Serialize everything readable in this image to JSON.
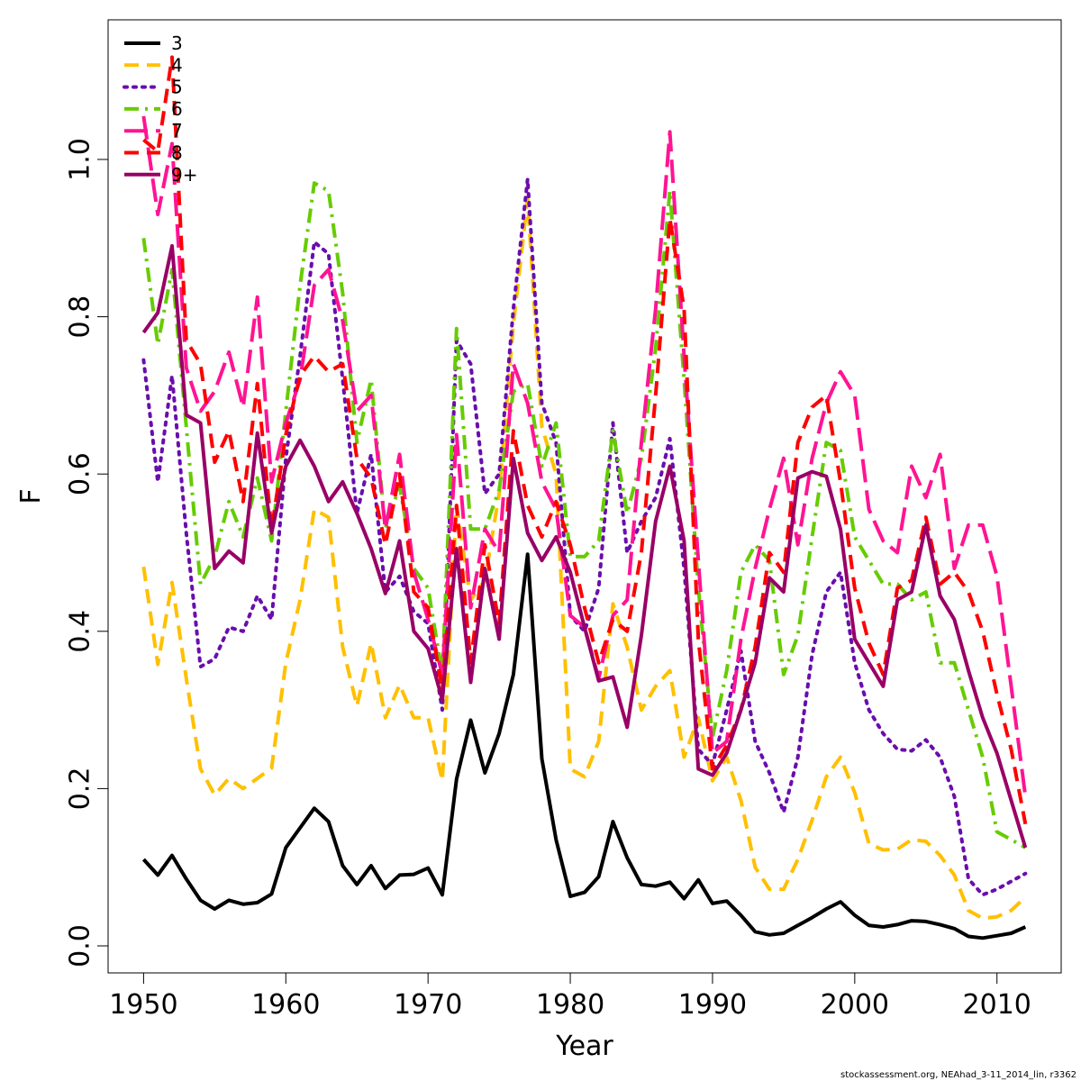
{
  "chart_data": {
    "type": "line",
    "title": "",
    "xlabel": "Year",
    "ylabel": "F",
    "xlim": [
      1950,
      2012
    ],
    "ylim": [
      0.0,
      1.13
    ],
    "x_ticks": [
      1950,
      1960,
      1970,
      1980,
      1990,
      2000,
      2010
    ],
    "y_ticks": [
      "0.0",
      "0.2",
      "0.4",
      "0.6",
      "0.8",
      "1.0"
    ],
    "grid": false,
    "legend_position": "top-left",
    "credit": "stockassessment.org, NEAhad_3-11_2014_lin, r3362",
    "x": [
      1950,
      1951,
      1952,
      1953,
      1954,
      1955,
      1956,
      1957,
      1958,
      1959,
      1960,
      1961,
      1962,
      1963,
      1964,
      1965,
      1966,
      1967,
      1968,
      1969,
      1970,
      1971,
      1972,
      1973,
      1974,
      1975,
      1976,
      1977,
      1978,
      1979,
      1980,
      1981,
      1982,
      1983,
      1984,
      1985,
      1986,
      1987,
      1988,
      1989,
      1990,
      1991,
      1992,
      1993,
      1994,
      1995,
      1996,
      1997,
      1998,
      1999,
      2000,
      2001,
      2002,
      2003,
      2004,
      2005,
      2006,
      2007,
      2008,
      2009,
      2010,
      2011,
      2012
    ],
    "series": [
      {
        "name": "3",
        "color": "#000000",
        "dash": "solid",
        "values": [
          0.11,
          0.09,
          0.115,
          0.085,
          0.058,
          0.047,
          0.058,
          0.053,
          0.055,
          0.066,
          0.125,
          0.15,
          0.175,
          0.158,
          0.102,
          0.078,
          0.102,
          0.073,
          0.09,
          0.091,
          0.099,
          0.065,
          0.212,
          0.287,
          0.22,
          0.27,
          0.345,
          0.498,
          0.238,
          0.135,
          0.063,
          0.068,
          0.088,
          0.158,
          0.112,
          0.078,
          0.076,
          0.081,
          0.06,
          0.084,
          0.054,
          0.057,
          0.039,
          0.018,
          0.014,
          0.016,
          0.026,
          0.036,
          0.047,
          0.056,
          0.039,
          0.026,
          0.024,
          0.027,
          0.032,
          0.031,
          0.027,
          0.022,
          0.012,
          0.01,
          0.013,
          0.016,
          0.024
        ]
      },
      {
        "name": "4",
        "color": "#ffc000",
        "dash": "dash",
        "values": [
          0.482,
          0.358,
          0.462,
          0.34,
          0.225,
          0.192,
          0.213,
          0.2,
          0.213,
          0.226,
          0.36,
          0.44,
          0.555,
          0.545,
          0.38,
          0.305,
          0.385,
          0.29,
          0.332,
          0.29,
          0.29,
          0.21,
          0.56,
          0.44,
          0.465,
          0.575,
          0.79,
          0.95,
          0.66,
          0.6,
          0.225,
          0.215,
          0.26,
          0.435,
          0.38,
          0.3,
          0.33,
          0.35,
          0.24,
          0.29,
          0.21,
          0.24,
          0.185,
          0.1,
          0.072,
          0.072,
          0.11,
          0.16,
          0.215,
          0.24,
          0.195,
          0.13,
          0.122,
          0.123,
          0.135,
          0.133,
          0.115,
          0.09,
          0.045,
          0.035,
          0.037,
          0.045,
          0.062
        ]
      },
      {
        "name": "5",
        "color": "#6a0dad",
        "dash": "dot",
        "values": [
          0.745,
          0.59,
          0.725,
          0.525,
          0.355,
          0.365,
          0.405,
          0.4,
          0.445,
          0.415,
          0.62,
          0.75,
          0.895,
          0.88,
          0.72,
          0.55,
          0.625,
          0.45,
          0.47,
          0.425,
          0.41,
          0.3,
          0.77,
          0.74,
          0.575,
          0.6,
          0.81,
          0.975,
          0.69,
          0.64,
          0.42,
          0.4,
          0.455,
          0.665,
          0.5,
          0.54,
          0.57,
          0.645,
          0.48,
          0.25,
          0.23,
          0.3,
          0.375,
          0.26,
          0.22,
          0.17,
          0.24,
          0.37,
          0.45,
          0.475,
          0.36,
          0.3,
          0.27,
          0.25,
          0.248,
          0.262,
          0.24,
          0.19,
          0.085,
          0.065,
          0.072,
          0.082,
          0.092
        ]
      },
      {
        "name": "6",
        "color": "#66cc00",
        "dash": "dashdot",
        "values": [
          0.9,
          0.765,
          0.86,
          0.66,
          0.46,
          0.495,
          0.565,
          0.52,
          0.595,
          0.515,
          0.68,
          0.84,
          0.97,
          0.96,
          0.83,
          0.64,
          0.72,
          0.53,
          0.585,
          0.48,
          0.455,
          0.345,
          0.785,
          0.53,
          0.53,
          0.58,
          0.705,
          0.715,
          0.61,
          0.665,
          0.495,
          0.495,
          0.515,
          0.655,
          0.55,
          0.62,
          0.76,
          0.96,
          0.72,
          0.455,
          0.265,
          0.35,
          0.475,
          0.51,
          0.49,
          0.345,
          0.395,
          0.52,
          0.64,
          0.63,
          0.52,
          0.49,
          0.46,
          0.46,
          0.44,
          0.45,
          0.36,
          0.36,
          0.3,
          0.24,
          0.145,
          0.135,
          0.125
        ]
      },
      {
        "name": "7",
        "color": "#ff1493",
        "dash": "longdash",
        "values": [
          1.055,
          0.93,
          1.02,
          0.735,
          0.68,
          0.705,
          0.755,
          0.685,
          0.825,
          0.59,
          0.665,
          0.72,
          0.84,
          0.86,
          0.795,
          0.68,
          0.7,
          0.53,
          0.625,
          0.475,
          0.415,
          0.345,
          0.65,
          0.43,
          0.53,
          0.5,
          0.74,
          0.69,
          0.59,
          0.555,
          0.42,
          0.405,
          0.34,
          0.42,
          0.44,
          0.64,
          0.81,
          1.035,
          0.75,
          0.49,
          0.245,
          0.26,
          0.39,
          0.48,
          0.555,
          0.62,
          0.51,
          0.62,
          0.69,
          0.73,
          0.7,
          0.555,
          0.515,
          0.5,
          0.61,
          0.57,
          0.625,
          0.48,
          0.535,
          0.535,
          0.47,
          0.33,
          0.19
        ]
      },
      {
        "name": "8",
        "color": "#ff0000",
        "dash": "dash",
        "values": [
          1.025,
          1.01,
          1.13,
          0.77,
          0.74,
          0.615,
          0.655,
          0.565,
          0.715,
          0.53,
          0.65,
          0.725,
          0.75,
          0.73,
          0.74,
          0.62,
          0.595,
          0.51,
          0.6,
          0.45,
          0.43,
          0.325,
          0.56,
          0.36,
          0.51,
          0.41,
          0.655,
          0.56,
          0.52,
          0.565,
          0.51,
          0.43,
          0.36,
          0.415,
          0.4,
          0.5,
          0.7,
          0.925,
          0.81,
          0.39,
          0.225,
          0.255,
          0.3,
          0.38,
          0.5,
          0.475,
          0.64,
          0.685,
          0.7,
          0.59,
          0.455,
          0.385,
          0.345,
          0.455,
          0.465,
          0.545,
          0.46,
          0.475,
          0.45,
          0.4,
          0.32,
          0.25,
          0.155
        ]
      },
      {
        "name": "9+",
        "color": "#990066",
        "dash": "solid",
        "values": [
          0.78,
          0.805,
          0.89,
          0.675,
          0.665,
          0.48,
          0.502,
          0.487,
          0.652,
          0.525,
          0.61,
          0.643,
          0.61,
          0.565,
          0.59,
          0.55,
          0.505,
          0.448,
          0.515,
          0.4,
          0.378,
          0.313,
          0.505,
          0.335,
          0.48,
          0.39,
          0.62,
          0.525,
          0.49,
          0.52,
          0.475,
          0.405,
          0.337,
          0.342,
          0.278,
          0.395,
          0.54,
          0.61,
          0.515,
          0.225,
          0.217,
          0.245,
          0.3,
          0.36,
          0.468,
          0.45,
          0.595,
          0.603,
          0.597,
          0.53,
          0.39,
          0.36,
          0.33,
          0.44,
          0.45,
          0.535,
          0.445,
          0.415,
          0.35,
          0.29,
          0.245,
          0.185,
          0.125
        ]
      }
    ]
  }
}
